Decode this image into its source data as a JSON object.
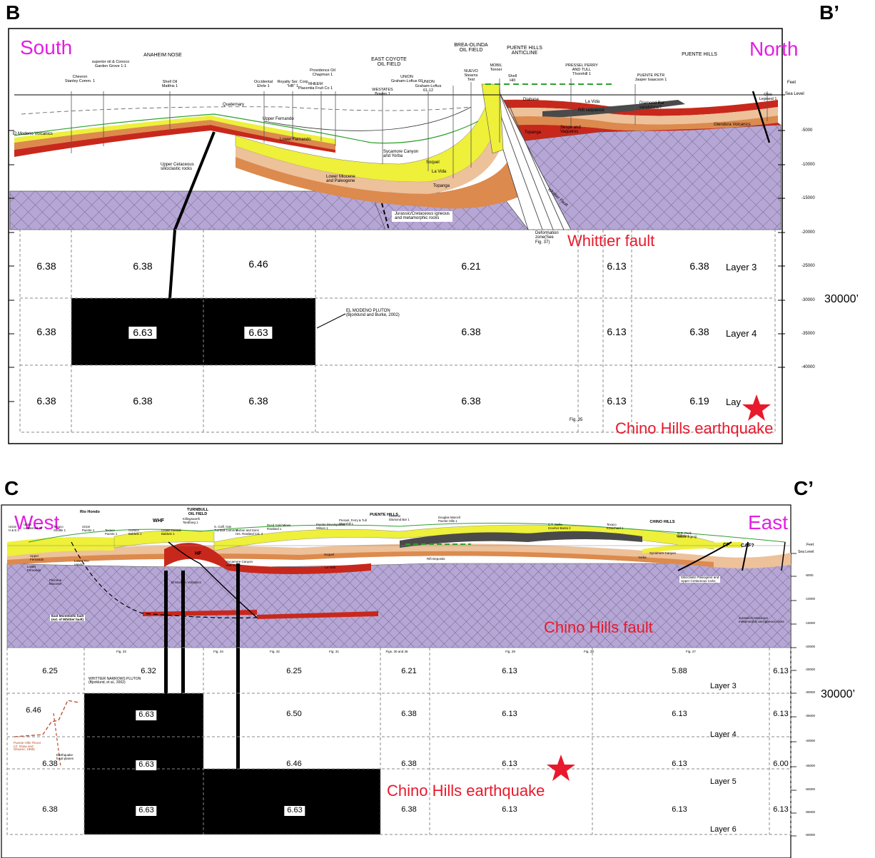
{
  "panel_b": {
    "label_left": "B",
    "label_right": "B’",
    "dir_left": "South",
    "dir_right": "North",
    "headers": {
      "anaheim_nose": "ANAHEIM NOSE",
      "east_coyote": [
        "EAST COYOTE",
        "OIL FIELD"
      ],
      "brea_olinda": [
        "BREA-OLINDA",
        "OIL FIELD"
      ],
      "puente_anticline": [
        "PUENTE HILLS",
        "ANTICLINE"
      ],
      "puente_hills": "PUENTE HILLS"
    },
    "wells": [
      [
        "Chevron",
        "Stanley Comm. 1"
      ],
      [
        "superior oil & Conoco",
        "Garden Grove 1-1"
      ],
      [
        "Shell Oil",
        "Matthis 1"
      ],
      [
        "Occidental",
        "Ehrle 1"
      ],
      [
        "Royalty Ser. Corp",
        "\"HB\" 1"
      ],
      [
        "Providence Oil",
        "Chapman 1"
      ],
      [
        "RHEEM",
        "Placentia Fruit Co 1"
      ],
      [
        "WESTATES",
        "Bowen 1"
      ],
      [
        "UNION",
        "Graham-Loftus 60"
      ],
      [
        "UNION",
        "Graham-Loftus",
        "61-12"
      ],
      [
        "NUEVO",
        "Stearns",
        "Test"
      ],
      [
        "MOBIL",
        "Tonner"
      ],
      [
        "Shell",
        "Hill"
      ],
      [
        "PRESSEL PERRY",
        "AND TULL",
        "Thornhill 1"
      ],
      [
        "PUENTE PETR",
        "Jasper Isaacson 1"
      ],
      [
        "Ohio",
        "Legrand 1"
      ]
    ],
    "units": {
      "quaternary": "Quaternary",
      "upper_fernando": "Upper Fernando",
      "lower_fernando": "Lower Fernando",
      "el_modeno": "El Modeno Volcanics",
      "upper_cretaceous": [
        "Upper Cetaceous",
        "siliciclastic rocks"
      ],
      "sycamore": [
        "Sycamore Canyon",
        "and Yorba"
      ],
      "soquel": "Soquel",
      "la_vida": "La Vida",
      "lower_miocene": [
        "Lower Miocene",
        "and Paleogene"
      ],
      "topanga": "Topanga",
      "jurassic": [
        "Jurassic/Cretaceous igneous",
        "and metamorphic rocks"
      ],
      "whittier_label": "Whittier Fault",
      "deformation": [
        "Deformation",
        "zone(See",
        "Fig. 37)"
      ],
      "diabase": "Diabase",
      "la_vida_n": "La Vida",
      "rift_sequence": "Rift sequence",
      "diamond_bar": [
        "Diamond Bar",
        "sandstone?"
      ],
      "sespe": [
        "Sespe and",
        "Vaqueros"
      ],
      "topanga_n": "Topanga",
      "glendora": "Glendora Volcanics",
      "pluton": [
        "EL MODENO PLUTON",
        "(Bjorklund and Burke, 2002)"
      ],
      "fig35": "Fig. 35"
    },
    "depth_axis": {
      "feet": "Feet",
      "sea_level": "Sea Level",
      "ticks": [
        "-5000",
        "-10000",
        "-15000",
        "-20000",
        "-25000",
        "-30000",
        "-35000",
        "-40000"
      ]
    },
    "marker_30000": "30000’",
    "velocity_rows": [
      [
        "6.38",
        "6.38",
        "6.46",
        "6.21",
        "6.13",
        "6.38"
      ],
      [
        "6.38",
        "6.63",
        "6.63",
        "6.38",
        "6.13",
        "6.38"
      ],
      [
        "6.38",
        "6.38",
        "6.38",
        "6.38",
        "6.13",
        "6.19"
      ]
    ],
    "layers": [
      "Layer 3",
      "Layer 4",
      "Lay"
    ],
    "annotations": {
      "whittier_fault": "Whittier fault",
      "earthquake": "Chino Hills earthquake"
    }
  },
  "panel_c": {
    "label_left": "C",
    "label_right": "C’",
    "dir_left": "West",
    "dir_right": "East",
    "headers": {
      "turnbull": [
        "TURNBULL",
        "OIL FIELD"
      ],
      "puente_hills": "PUENTE HILLS",
      "chino_hills": "CHINO HILLS"
    },
    "wells": [
      [
        "Union",
        "H & E 3"
      ],
      [
        "Union",
        "La Merced 30"
      ],
      [
        "Texaco",
        "Shuttle 1"
      ],
      [
        "Union",
        "Puente 1"
      ],
      [
        "Texaco",
        "Puente 1"
      ],
      [
        "Conoco",
        "Baldwin 1"
      ],
      [
        "Crown Central",
        "Baldwin 1"
      ],
      [
        "Killingsworth",
        "Tandburg 1"
      ],
      [
        "S. Calif. Gas",
        "Turnbull Comm 3"
      ],
      [
        "Morton and Sons",
        "Hrs. Rowland Cal. 3"
      ],
      [
        "Reed Gold Mines",
        "Rowland 1"
      ],
      [
        "Puente Development",
        "Wilson 1"
      ],
      [
        "Pressel, Ferry & Tull",
        "Thornhill 1"
      ],
      [
        "Chevron",
        "Diamond Bar 1"
      ],
      [
        "Douglas Marcell",
        "Puente Hills 1"
      ],
      [
        "C.T. Stella",
        "Kroeher-Banta 2"
      ],
      [
        "Texaco",
        "Krauchard 1"
      ],
      [
        "Mohalo 1"
      ],
      [
        "M.R. Peck",
        "Wilcox 1 (proj)"
      ]
    ],
    "units": {
      "rio_hondo": "Rio Hondo",
      "whf": "WHF",
      "hf": "HF",
      "cf": "CF",
      "caf": "CAF?",
      "upper_fernando": [
        "Upper",
        "Fernando"
      ],
      "lower_fernando": [
        "Lower",
        "Fernando"
      ],
      "pliocene": [
        "Pliocene",
        "Miocene"
      ],
      "el_modeno": "El Modeno Volcanics",
      "sycamore": [
        "Sycamore Canyon",
        "and Yorba"
      ],
      "lower_fernando2": [
        "Lower Fer-",
        "nando"
      ],
      "soquel": "Soquel",
      "la_vida": "La Vida",
      "rift_deposits": "Rift Deposits",
      "sycamore_e": "Sycamore Canyon",
      "yorba": "Yorba",
      "ewm": [
        "East Montebello fault",
        "(ext. of Whittier fault)"
      ],
      "siliciclastic": [
        "Siliciclastic Paleogene and",
        "Upper Cretaceous rocks"
      ],
      "jurassic": [
        "Jurassic/Cretaceous",
        "metamorphic and igneous rocks"
      ],
      "pluton": [
        "WHITTIER NARROWS PLUTON",
        "(Bjorklund, et al., 2002)"
      ],
      "puente_thrust": [
        "Puente Hills Thrust",
        "(cf. Shaw and",
        "Shearer, 1999)"
      ],
      "eq_focal": [
        "Earthquake",
        "focal planes"
      ],
      "figs": [
        "Fig. 33",
        "Fig. 34",
        "Fig. 32",
        "Fig. 31",
        "Figs. 30 and 36",
        "Fig. 29",
        "Fig. 28",
        "Fig. 27"
      ]
    },
    "depth_axis": {
      "feet": "Feet",
      "sea_level": "Sea Level",
      "ticks": [
        "-5000",
        "-10000",
        "-15000",
        "-20000",
        "-25000",
        "-30000",
        "-35000",
        "-40000",
        "-45000",
        "-50000",
        "-55000",
        "-60000"
      ]
    },
    "marker_30000": "30000’",
    "velocity_rows": [
      [
        "6.25",
        "6.32",
        "6.25",
        "6.21",
        "6.13",
        "5.88",
        "6.13"
      ],
      [
        "6.46",
        "6.63",
        "6.50",
        "6.38",
        "6.13",
        "6.13",
        "6.13"
      ],
      [
        "6.38",
        "6.63",
        "6.46",
        "6.38",
        "6.13",
        "6.13",
        "6.00"
      ],
      [
        "6.38",
        "6.63",
        "6.63",
        "6.38",
        "6.13",
        "6.13",
        "6.13"
      ]
    ],
    "layers": [
      "Layer 3",
      "Layer 4",
      "Layer 5",
      "Layer 6"
    ],
    "annotations": {
      "chino_fault": "Chino Hills fault",
      "earthquake": "Chino Hills earthquake"
    }
  },
  "colors": {
    "basement": "#b6a6d6",
    "basement_grid": "#6f6a86",
    "volcanic": "#c8281c",
    "orange": "#dc8a4e",
    "peach": "#edc19a",
    "yellow": "#eef03a",
    "dark": "#4a4a4a",
    "pluton": "#000000",
    "magenta": "#e020e0",
    "red_label": "#e8192c",
    "green": "#2ca02c"
  }
}
